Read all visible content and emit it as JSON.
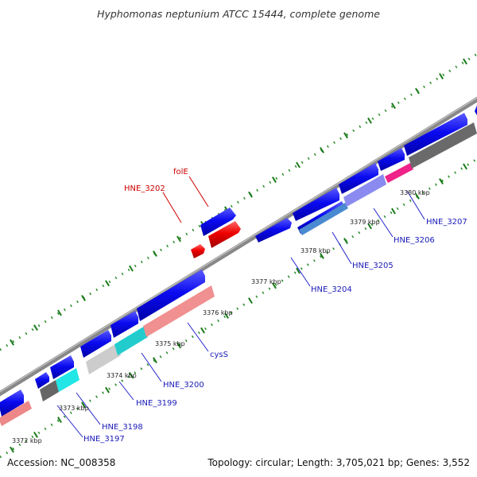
{
  "title": "Hyphomonas neptunium ATCC 15444, complete genome",
  "footer": {
    "accession": "Accession: NC_008358",
    "summary": "Topology: circular; Length: 3,705,021 bp; Genes: 3,552"
  },
  "colors": {
    "label_red": "#cc0000",
    "label_blue": "#1a1ab8",
    "tick": "#1a7a1a",
    "backbone": "#8a8a8a",
    "forward_gene": "#0a0ae8"
  },
  "ticks": [
    "3372 kbp",
    "3373 kbp",
    "3374 kbp",
    "3375 kbp",
    "3376 kbp",
    "3377 kbp",
    "3378 kbp",
    "3379 kbp",
    "3380 kbp"
  ],
  "gene_labels": {
    "hne_3202": "HNE_3202",
    "fole": "folE",
    "hne_3197": "HNE_3197",
    "hne_3198": "HNE_3198",
    "hne_3199": "HNE_3199",
    "hne_3200": "HNE_3200",
    "cyss": "cysS",
    "hne_3204": "HNE_3204",
    "hne_3205": "HNE_3205",
    "hne_3206": "HNE_3206",
    "hne_3207": "HNE_3207"
  }
}
